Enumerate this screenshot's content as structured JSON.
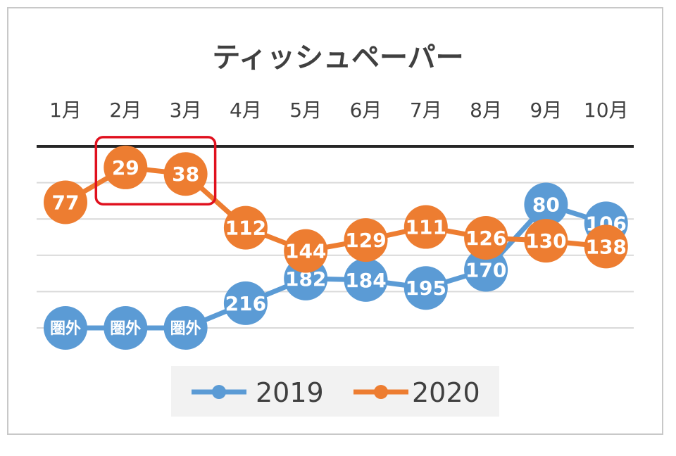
{
  "chart_data": {
    "type": "line",
    "title": "ティッシュペーパー",
    "categories": [
      "1月",
      "2月",
      "3月",
      "4月",
      "5月",
      "6月",
      "7月",
      "8月",
      "9月",
      "10月"
    ],
    "y_axis": {
      "reversed": true,
      "range": [
        0,
        250
      ],
      "gridlines": true,
      "labels_visible": false
    },
    "series": [
      {
        "name": "2019",
        "color": "#5B9BD5",
        "values": [
          null,
          null,
          null,
          216,
          182,
          184,
          195,
          170,
          80,
          106
        ],
        "point_labels": [
          "圏外",
          "圏外",
          "圏外",
          "216",
          "182",
          "184",
          "195",
          "170",
          "80",
          "106"
        ]
      },
      {
        "name": "2020",
        "color": "#ED7D31",
        "values": [
          77,
          29,
          38,
          112,
          144,
          129,
          111,
          126,
          130,
          138
        ],
        "point_labels": [
          "77",
          "29",
          "38",
          "112",
          "144",
          "129",
          "111",
          "126",
          "130",
          "138"
        ]
      }
    ],
    "out_of_rank_label": "圏外",
    "highlight": {
      "categories": [
        "2月",
        "3月"
      ],
      "color": "#E0101E"
    },
    "legend": {
      "position": "bottom",
      "entries": [
        "2019",
        "2020"
      ]
    }
  }
}
